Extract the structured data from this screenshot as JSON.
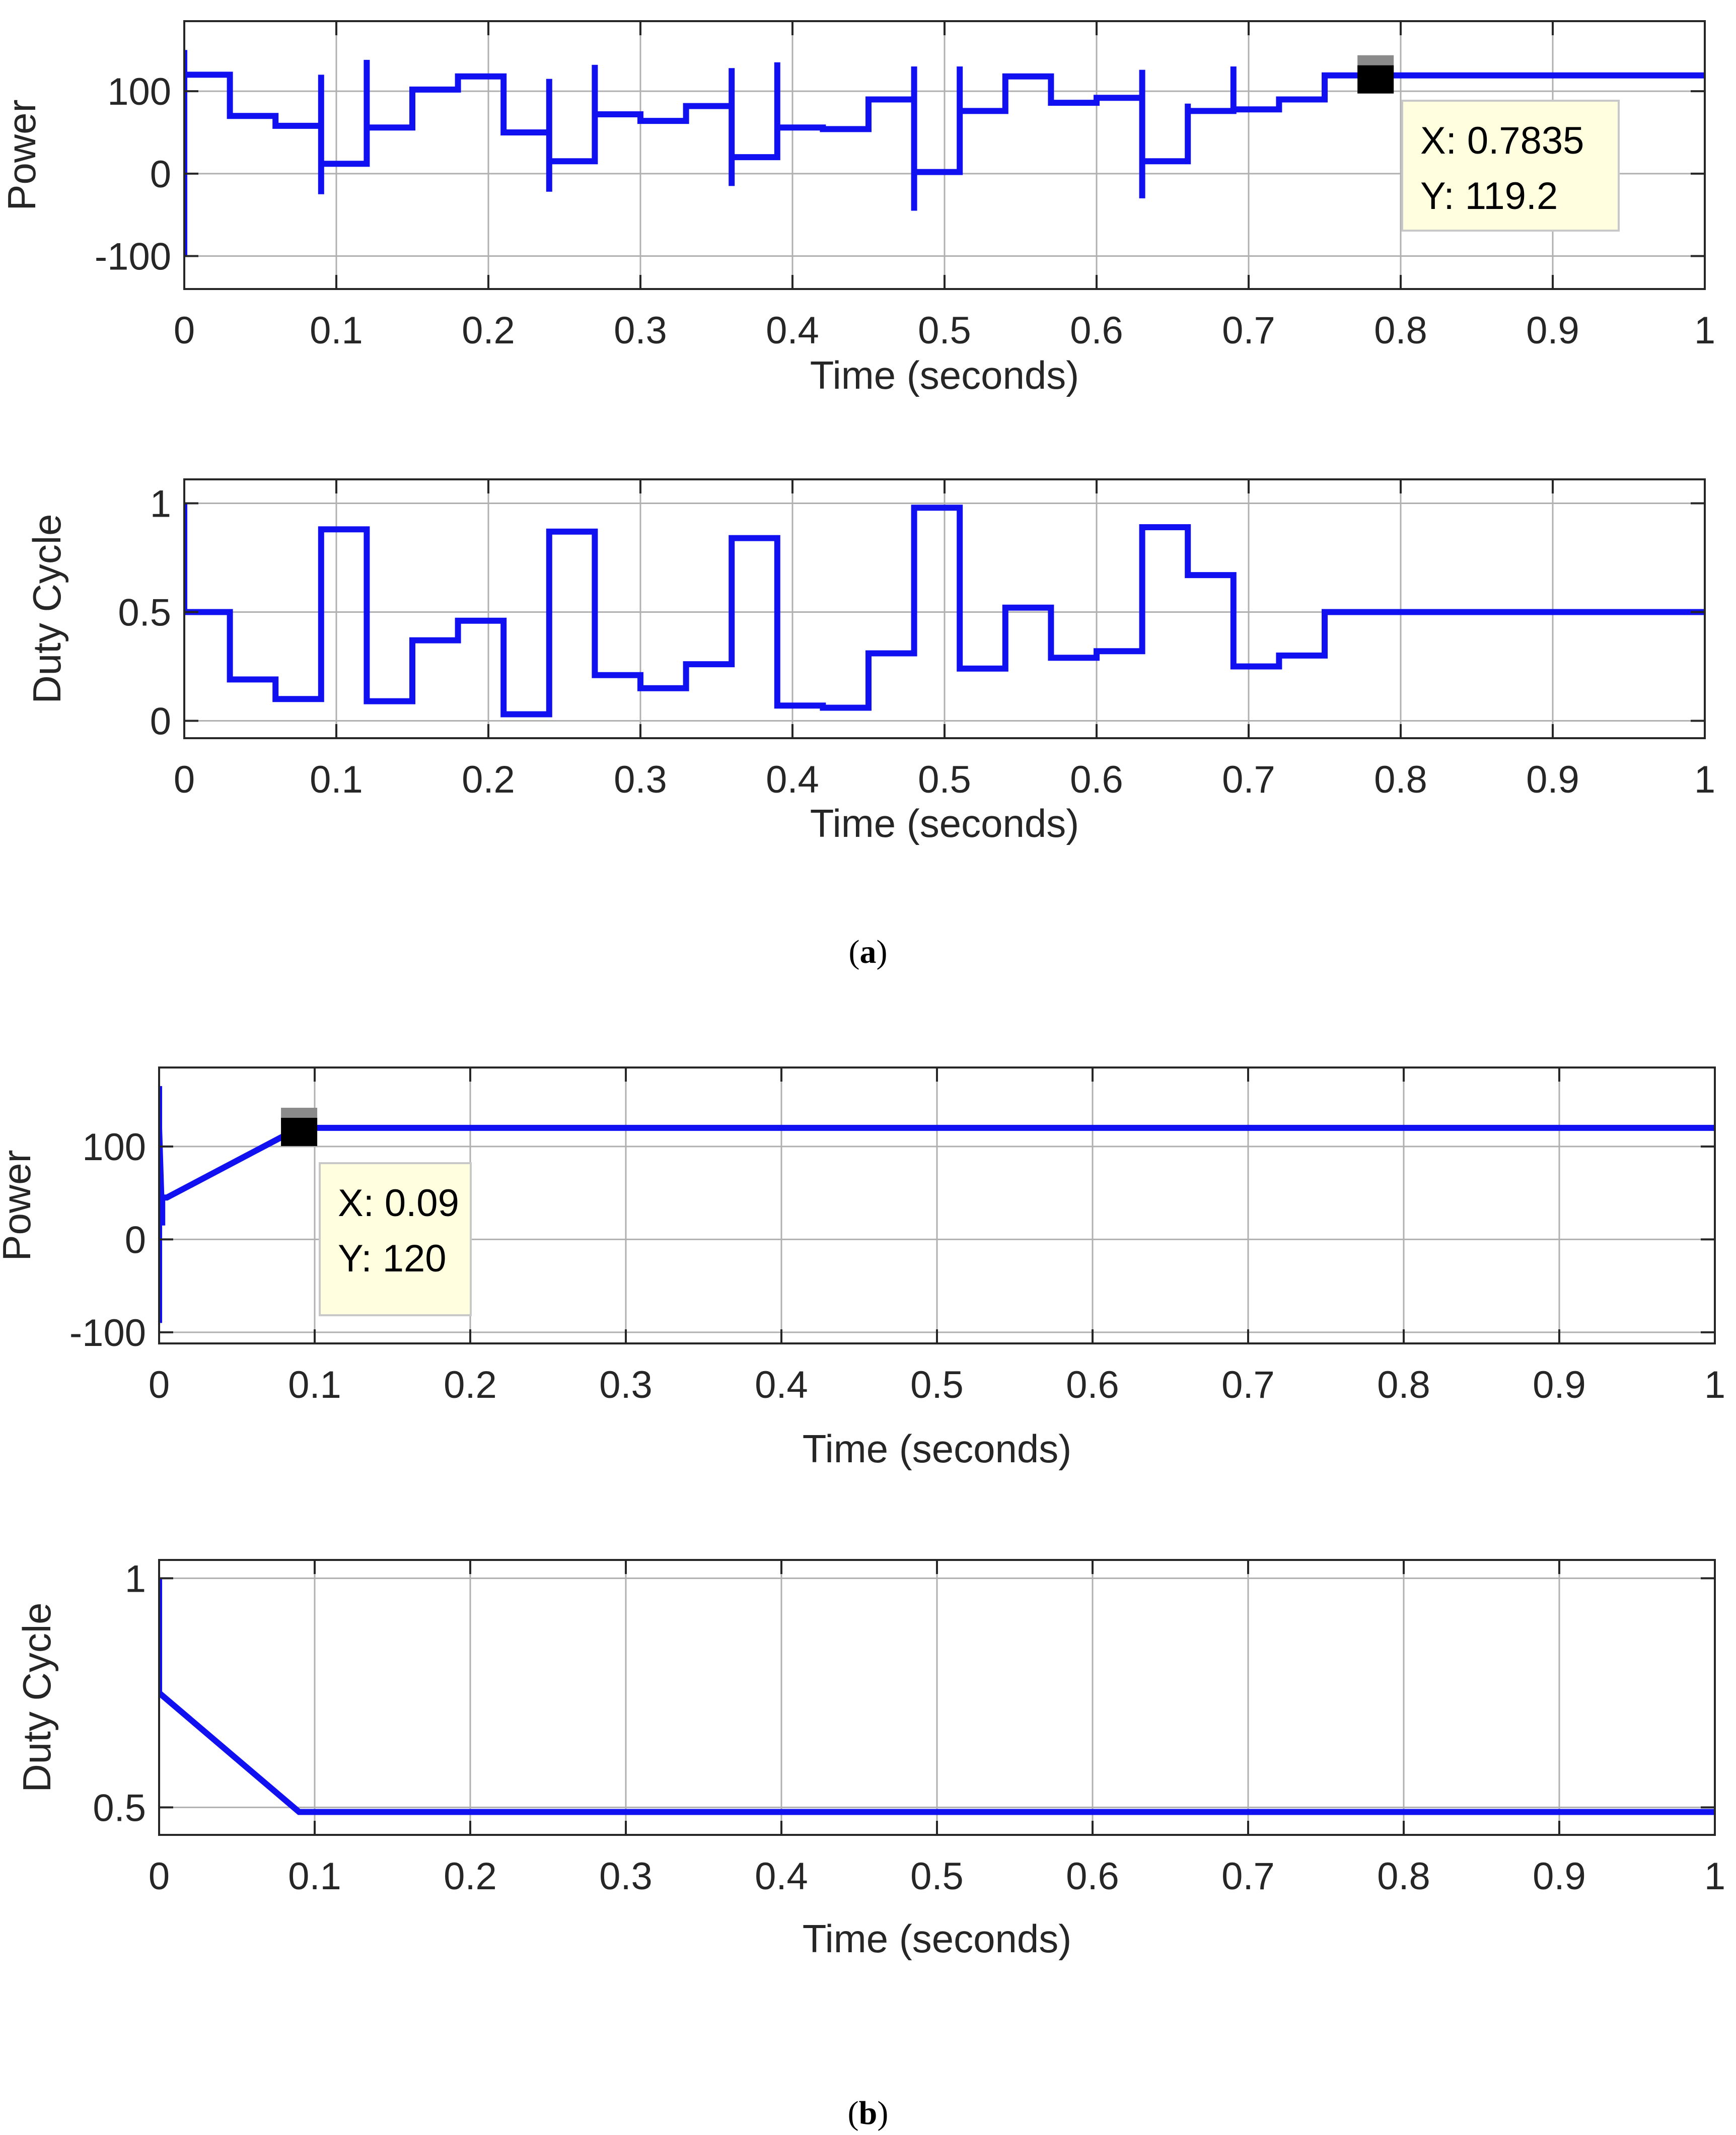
{
  "colors": {
    "line": "#1010f0",
    "axes": "#262626",
    "grid": "#b0b0b0",
    "datatip_bg": "#ffffe0",
    "datatip_border": "#c8c8c8"
  },
  "captions": {
    "a": "a",
    "b": "b"
  },
  "chart_data": [
    {
      "panel": "a",
      "type": "line",
      "ylabel": "Power",
      "xlabel": "Time (seconds)",
      "xlim": [
        0,
        1
      ],
      "ylim": [
        -140,
        185
      ],
      "grid": true,
      "xticks": [
        0,
        0.1,
        0.2,
        0.3,
        0.4,
        0.5,
        0.6,
        0.7,
        0.8,
        0.9,
        1
      ],
      "xtick_labels": [
        "0",
        "0.1",
        "0.2",
        "0.3",
        "0.4",
        "0.5",
        "0.6",
        "0.7",
        "0.8",
        "0.9",
        "1"
      ],
      "yticks": [
        -100,
        0,
        100
      ],
      "ytick_labels": [
        "-100",
        "0",
        "100"
      ],
      "series": [
        {
          "name": "Power",
          "x": [
            0,
            0,
            0,
            0.03,
            0.03,
            0.06,
            0.06,
            0.09,
            0.09,
            0.09,
            0.09,
            0.09,
            0.12,
            0.12,
            0.12,
            0.12,
            0.15,
            0.15,
            0.18,
            0.18,
            0.21,
            0.21,
            0.24,
            0.24,
            0.24,
            0.24,
            0.24,
            0.27,
            0.27,
            0.27,
            0.27,
            0.3,
            0.3,
            0.33,
            0.33,
            0.36,
            0.36,
            0.36,
            0.36,
            0.36,
            0.39,
            0.39,
            0.39,
            0.39,
            0.42,
            0.42,
            0.45,
            0.45,
            0.48,
            0.48,
            0.48,
            0.48,
            0.48,
            0.51,
            0.51,
            0.51,
            0.51,
            0.54,
            0.54,
            0.57,
            0.57,
            0.6,
            0.6,
            0.63,
            0.63,
            0.63,
            0.63,
            0.63,
            0.66,
            0.66,
            0.66,
            0.66,
            0.69,
            0.69,
            0.69,
            0.69,
            0.72,
            0.72,
            0.75,
            0.75,
            0.7835,
            1
          ],
          "y": [
            -100,
            150,
            120,
            120,
            70,
            70,
            58,
            58,
            120,
            -25,
            12,
            12,
            12,
            138,
            56,
            56,
            56,
            102,
            102,
            118,
            118,
            50,
            50,
            115,
            -22,
            15,
            15,
            15,
            132,
            72,
            72,
            72,
            64,
            64,
            82,
            82,
            128,
            -15,
            20,
            20,
            20,
            135,
            56,
            56,
            56,
            54,
            54,
            90,
            90,
            130,
            -45,
            2,
            2,
            2,
            130,
            76,
            76,
            76,
            118,
            118,
            86,
            86,
            92,
            92,
            126,
            -30,
            15,
            15,
            15,
            85,
            76,
            76,
            76,
            130,
            78,
            78,
            78,
            90,
            90,
            119.2,
            119.2,
            119.2
          ]
        }
      ],
      "datatip": {
        "x": 0.7835,
        "y": 119.2,
        "label_x": "X: 0.7835",
        "label_y": "Y: 119.2"
      }
    },
    {
      "panel": "a",
      "type": "line",
      "ylabel": "Duty Cycle",
      "xlabel": "Time (seconds)",
      "xlim": [
        0,
        1
      ],
      "ylim": [
        -0.08,
        1.11
      ],
      "grid": true,
      "xticks": [
        0,
        0.1,
        0.2,
        0.3,
        0.4,
        0.5,
        0.6,
        0.7,
        0.8,
        0.9,
        1
      ],
      "xtick_labels": [
        "0",
        "0.1",
        "0.2",
        "0.3",
        "0.4",
        "0.5",
        "0.6",
        "0.7",
        "0.8",
        "0.9",
        "1"
      ],
      "yticks": [
        0,
        0.5,
        1
      ],
      "ytick_labels": [
        "0",
        "0.5",
        "1"
      ],
      "series": [
        {
          "name": "Duty Cycle",
          "x": [
            0,
            0,
            0.03,
            0.03,
            0.06,
            0.06,
            0.09,
            0.09,
            0.12,
            0.12,
            0.15,
            0.15,
            0.18,
            0.18,
            0.21,
            0.21,
            0.24,
            0.24,
            0.27,
            0.27,
            0.3,
            0.3,
            0.33,
            0.33,
            0.36,
            0.36,
            0.39,
            0.39,
            0.42,
            0.42,
            0.45,
            0.45,
            0.48,
            0.48,
            0.51,
            0.51,
            0.54,
            0.54,
            0.57,
            0.57,
            0.6,
            0.6,
            0.63,
            0.63,
            0.66,
            0.66,
            0.69,
            0.69,
            0.72,
            0.72,
            0.75,
            0.75,
            1
          ],
          "y": [
            1,
            0.5,
            0.5,
            0.19,
            0.19,
            0.1,
            0.1,
            0.88,
            0.88,
            0.09,
            0.09,
            0.37,
            0.37,
            0.46,
            0.46,
            0.03,
            0.03,
            0.87,
            0.87,
            0.21,
            0.21,
            0.15,
            0.15,
            0.26,
            0.26,
            0.84,
            0.84,
            0.07,
            0.07,
            0.06,
            0.06,
            0.31,
            0.31,
            0.98,
            0.98,
            0.24,
            0.24,
            0.52,
            0.52,
            0.29,
            0.29,
            0.32,
            0.32,
            0.89,
            0.89,
            0.67,
            0.67,
            0.25,
            0.25,
            0.3,
            0.3,
            0.5,
            0.5
          ]
        }
      ]
    },
    {
      "panel": "b",
      "type": "line",
      "ylabel": "Power",
      "xlabel": "Time (seconds)",
      "xlim": [
        0,
        1
      ],
      "ylim": [
        -112,
        185
      ],
      "grid": true,
      "xticks": [
        0,
        0.1,
        0.2,
        0.3,
        0.4,
        0.5,
        0.6,
        0.7,
        0.8,
        0.9,
        1
      ],
      "xtick_labels": [
        "0",
        "0.1",
        "0.2",
        "0.3",
        "0.4",
        "0.5",
        "0.6",
        "0.7",
        "0.8",
        "0.9",
        "1"
      ],
      "yticks": [
        -100,
        0,
        100
      ],
      "ytick_labels": [
        "-100",
        "0",
        "100"
      ],
      "series": [
        {
          "name": "Power",
          "x": [
            0,
            0,
            0,
            0,
            0.002,
            0.002,
            0.005,
            0.09,
            1
          ],
          "y": [
            -90,
            165,
            20,
            120,
            15,
            45,
            45,
            120,
            120
          ]
        }
      ],
      "datatip": {
        "x": 0.09,
        "y": 120,
        "label_x": "X: 0.09",
        "label_y": "Y: 120"
      }
    },
    {
      "panel": "b",
      "type": "line",
      "ylabel": "Duty Cycle",
      "xlabel": "Time (seconds)",
      "xlim": [
        0,
        1
      ],
      "ylim": [
        0.44,
        1.04
      ],
      "grid": true,
      "xticks": [
        0,
        0.1,
        0.2,
        0.3,
        0.4,
        0.5,
        0.6,
        0.7,
        0.8,
        0.9,
        1
      ],
      "xtick_labels": [
        "0",
        "0.1",
        "0.2",
        "0.3",
        "0.4",
        "0.5",
        "0.6",
        "0.7",
        "0.8",
        "0.9",
        "1"
      ],
      "yticks": [
        0.5,
        1
      ],
      "ytick_labels": [
        "0.5",
        "1"
      ],
      "series": [
        {
          "name": "Duty Cycle",
          "x": [
            0,
            0,
            0.09,
            1
          ],
          "y": [
            1,
            0.75,
            0.49,
            0.49
          ]
        }
      ]
    }
  ]
}
